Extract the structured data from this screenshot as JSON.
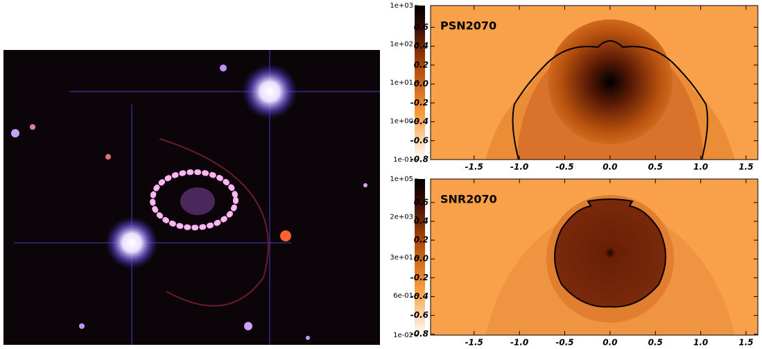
{
  "chart_data": [
    {
      "type": "field",
      "title": "PSN2070",
      "xlim": [
        -1.98,
        1.63
      ],
      "ylim": [
        -0.8,
        0.83
      ],
      "xticks": [
        -1.5,
        {
          "value": -1,
          "label": "-1.0"
        },
        -0.5,
        {
          "value": 0,
          "label": "0.0"
        },
        0.5,
        {
          "value": 1,
          "label": "1.0"
        },
        1.5
      ],
      "yticks": [
        -0.8,
        -0.6,
        -0.4,
        -0.2,
        {
          "value": 0,
          "label": "0.0"
        },
        0.2,
        0.4,
        0.6
      ],
      "colorbar": {
        "scale": "log",
        "lim": [
          0.1,
          1000
        ],
        "ticks": [
          {
            "value": 0.1,
            "label": "1e-01"
          },
          {
            "value": 1,
            "label": "1e+00"
          },
          {
            "value": 10,
            "label": "1e+01"
          },
          {
            "value": 100,
            "label": "1e+02"
          },
          {
            "value": 1000,
            "label": "1e+03"
          }
        ]
      }
    },
    {
      "type": "field",
      "title": "SNR2070",
      "xlim": [
        -1.98,
        1.63
      ],
      "ylim": [
        -0.81,
        0.85
      ],
      "xticks": [
        -1.5,
        {
          "value": -1,
          "label": "-1.0"
        },
        -0.5,
        {
          "value": 0,
          "label": "0.0"
        },
        0.5,
        {
          "value": 1,
          "label": "1.0"
        },
        1.5
      ],
      "yticks": [
        -0.8,
        -0.6,
        -0.4,
        -0.2,
        {
          "value": 0,
          "label": "0.0"
        },
        0.2,
        0.4,
        0.6
      ],
      "colorbar": {
        "scale": "log",
        "lim": [
          0.01,
          100000
        ],
        "ticks": [
          {
            "value": 0.01,
            "label": "1e-02"
          },
          {
            "value": 0.6,
            "label": "6e-01"
          },
          {
            "value": 30,
            "label": "3e+01"
          },
          {
            "value": 2000,
            "label": "2e+03"
          },
          {
            "value": 100000,
            "label": "1e+05"
          }
        ]
      }
    }
  ]
}
